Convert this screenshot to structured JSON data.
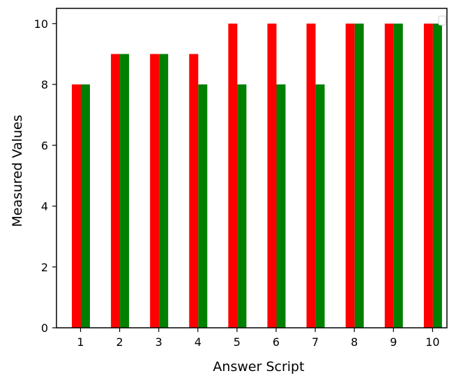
{
  "chart_data": {
    "type": "bar",
    "title": "",
    "xlabel": "Answer Script",
    "ylabel": "Measured Values",
    "categories": [
      "1",
      "2",
      "3",
      "4",
      "5",
      "6",
      "7",
      "8",
      "9",
      "10"
    ],
    "series": [
      {
        "color": "#ff0000",
        "values": [
          8,
          9,
          9,
          9,
          10,
          10,
          10,
          10,
          10,
          10
        ]
      },
      {
        "color": "#008000",
        "values": [
          8,
          9,
          9,
          8,
          8,
          8,
          8,
          10,
          10,
          10
        ]
      }
    ],
    "ylim": [
      0,
      10.5
    ],
    "yticks": [
      0,
      2,
      4,
      6,
      8,
      10
    ],
    "grid": false,
    "legend": "top-right"
  }
}
